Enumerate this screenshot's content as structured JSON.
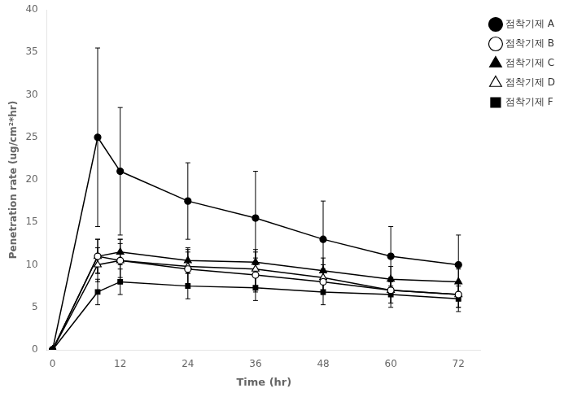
{
  "chart_data": {
    "type": "line",
    "x": [
      0,
      8,
      12,
      24,
      36,
      48,
      60,
      72
    ],
    "xlabel": "Time (hr)",
    "ylabel": "Penetration rate (ug/cm²*hr)",
    "xlim": [
      -1,
      76
    ],
    "ylim": [
      0,
      40
    ],
    "xticks": [
      0,
      12,
      24,
      36,
      48,
      60,
      72
    ],
    "yticks": [
      0,
      5,
      10,
      15,
      20,
      25,
      30,
      35,
      40
    ],
    "grid": false,
    "legend": "right",
    "series": [
      {
        "name": "점착기제 A",
        "color": "#000000",
        "marker": "circle",
        "values": [
          0,
          25.0,
          21.0,
          17.5,
          15.5,
          13.0,
          11.0,
          10.0
        ],
        "errors": [
          0,
          10.5,
          7.5,
          4.5,
          5.5,
          4.5,
          3.5,
          3.5
        ]
      },
      {
        "name": "점착기제 B",
        "color": "#000000",
        "marker": "circle-open",
        "values": [
          0,
          11.0,
          10.5,
          9.5,
          8.8,
          8.0,
          7.0,
          6.5
        ],
        "errors": [
          0,
          2.0,
          2.5,
          2.0,
          2.0,
          1.5,
          1.5,
          1.5
        ]
      },
      {
        "name": "점착기제 C",
        "color": "#000000",
        "marker": "triangle",
        "values": [
          0,
          11.0,
          11.5,
          10.5,
          10.3,
          9.3,
          8.3,
          8.0
        ],
        "errors": [
          0,
          2.0,
          1.5,
          1.5,
          1.5,
          1.5,
          1.5,
          1.5
        ]
      },
      {
        "name": "점착기제 D",
        "color": "#000000",
        "marker": "triangle-open",
        "values": [
          0,
          10.0,
          10.5,
          9.8,
          9.5,
          8.5,
          7.0,
          6.5
        ],
        "errors": [
          0,
          2.0,
          2.0,
          2.0,
          2.0,
          1.5,
          1.5,
          1.5
        ]
      },
      {
        "name": "점착기제 F",
        "color": "#000000",
        "marker": "square",
        "values": [
          0,
          6.8,
          8.0,
          7.5,
          7.3,
          6.8,
          6.5,
          6.0
        ],
        "errors": [
          0,
          1.5,
          1.5,
          1.5,
          1.5,
          1.5,
          1.5,
          1.5
        ]
      }
    ]
  }
}
